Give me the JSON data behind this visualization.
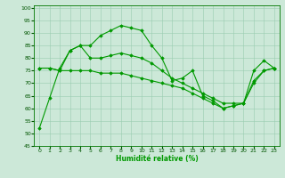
{
  "xlabel": "Humidité relative (%)",
  "background_color": "#cce8d8",
  "grid_color": "#99ccb0",
  "line_color": "#009900",
  "xlim": [
    -0.5,
    23.5
  ],
  "ylim": [
    45,
    101
  ],
  "yticks": [
    45,
    50,
    55,
    60,
    65,
    70,
    75,
    80,
    85,
    90,
    95,
    100
  ],
  "xticks": [
    0,
    1,
    2,
    3,
    4,
    5,
    6,
    7,
    8,
    9,
    10,
    11,
    12,
    13,
    14,
    15,
    16,
    17,
    18,
    19,
    20,
    21,
    22,
    23
  ],
  "line1": [
    52,
    64,
    76,
    83,
    85,
    85,
    89,
    91,
    93,
    92,
    91,
    85,
    80,
    71,
    72,
    75,
    65,
    63,
    60,
    61,
    62,
    75,
    79,
    76
  ],
  "line2": [
    76,
    76,
    75,
    83,
    85,
    80,
    80,
    81,
    82,
    81,
    80,
    78,
    75,
    72,
    70,
    68,
    66,
    64,
    62,
    62,
    62,
    71,
    75,
    76
  ],
  "line3": [
    76,
    76,
    75,
    75,
    75,
    75,
    74,
    74,
    74,
    73,
    72,
    71,
    70,
    69,
    68,
    66,
    64,
    62,
    60,
    61,
    62,
    70,
    75,
    76
  ]
}
